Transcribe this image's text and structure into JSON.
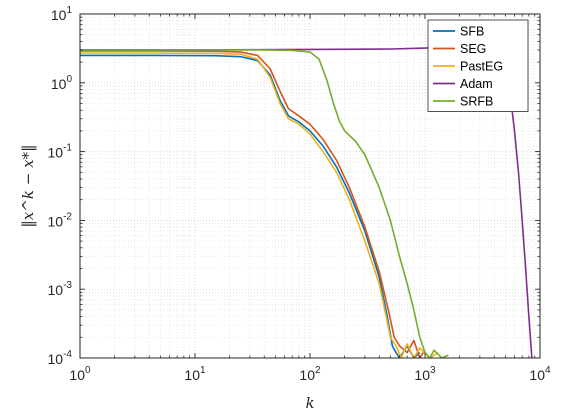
{
  "chart_data": {
    "type": "line",
    "xscale": "log",
    "yscale": "log",
    "xlim": [
      1,
      10000
    ],
    "ylim": [
      0.0001,
      10
    ],
    "xlabel": "k",
    "ylabel": "‖x^k − x*‖",
    "grid": true,
    "minor_grid": true,
    "legend_position": "top-right",
    "x_ticks": [
      {
        "value": 1,
        "base": "10",
        "exp": "0"
      },
      {
        "value": 10,
        "base": "10",
        "exp": "1"
      },
      {
        "value": 100,
        "base": "10",
        "exp": "2"
      },
      {
        "value": 1000,
        "base": "10",
        "exp": "3"
      },
      {
        "value": 10000,
        "base": "10",
        "exp": "4"
      }
    ],
    "y_ticks": [
      {
        "value": 0.0001,
        "base": "10",
        "exp": "-4"
      },
      {
        "value": 0.001,
        "base": "10",
        "exp": "-3"
      },
      {
        "value": 0.01,
        "base": "10",
        "exp": "-2"
      },
      {
        "value": 0.1,
        "base": "10",
        "exp": "-1"
      },
      {
        "value": 1,
        "base": "10",
        "exp": "0"
      },
      {
        "value": 10,
        "base": "10",
        "exp": "1"
      }
    ],
    "series": [
      {
        "name": "SFB",
        "color": "#0072BD",
        "x": [
          1,
          5,
          15,
          25,
          35,
          45,
          55,
          65,
          80,
          100,
          130,
          170,
          220,
          300,
          400,
          470,
          520,
          560,
          600,
          700,
          800,
          900
        ],
        "y": [
          2.5,
          2.5,
          2.48,
          2.4,
          2.1,
          1.3,
          0.55,
          0.33,
          0.27,
          0.2,
          0.12,
          0.06,
          0.025,
          0.007,
          0.0015,
          0.0004,
          0.00015,
          0.00012,
          0.0001,
          0.00015,
          0.0001,
          0.00012
        ]
      },
      {
        "name": "SEG",
        "color": "#D95319",
        "x": [
          1,
          5,
          15,
          25,
          35,
          45,
          55,
          65,
          80,
          100,
          130,
          170,
          220,
          300,
          400,
          480,
          540,
          600,
          700,
          800,
          900,
          1000
        ],
        "y": [
          2.9,
          2.9,
          2.88,
          2.8,
          2.5,
          1.6,
          0.75,
          0.42,
          0.33,
          0.25,
          0.15,
          0.075,
          0.03,
          0.008,
          0.0018,
          0.0005,
          0.0002,
          0.00015,
          0.00012,
          0.00018,
          0.0001,
          0.00013
        ]
      },
      {
        "name": "PastEG",
        "color": "#EDB120",
        "x": [
          1,
          5,
          15,
          25,
          35,
          45,
          55,
          65,
          80,
          100,
          130,
          170,
          220,
          300,
          400,
          460,
          500,
          560,
          620,
          700,
          800,
          900,
          1100,
          1300
        ],
        "y": [
          2.7,
          2.7,
          2.68,
          2.6,
          2.2,
          1.2,
          0.5,
          0.3,
          0.25,
          0.18,
          0.1,
          0.05,
          0.02,
          0.005,
          0.0012,
          0.0004,
          0.0002,
          0.00015,
          0.0001,
          0.00016,
          0.0001,
          0.00014,
          0.0001,
          0.00012
        ]
      },
      {
        "name": "Adam",
        "color": "#7E2F8E",
        "x": [
          1,
          10,
          100,
          500,
          1000,
          2000,
          3000,
          4000,
          4500,
          5000,
          5500,
          6000,
          6500,
          7000,
          7500,
          8000,
          8500
        ],
        "y": [
          3.0,
          3.0,
          3.05,
          3.1,
          3.2,
          3.3,
          3.3,
          3.1,
          2.8,
          1.8,
          0.7,
          0.2,
          0.05,
          0.01,
          0.002,
          0.0004,
          0.0001
        ]
      },
      {
        "name": "SRFB",
        "color": "#77AC30",
        "x": [
          1,
          10,
          40,
          70,
          100,
          120,
          140,
          160,
          180,
          200,
          250,
          300,
          400,
          500,
          600,
          700,
          800,
          900,
          1000,
          1100,
          1200,
          1400,
          1600
        ],
        "y": [
          3.0,
          3.0,
          3.0,
          2.95,
          2.8,
          2.2,
          1.1,
          0.5,
          0.28,
          0.2,
          0.14,
          0.09,
          0.03,
          0.01,
          0.003,
          0.0012,
          0.0005,
          0.0002,
          0.00012,
          0.0001,
          0.00013,
          0.0001,
          0.00011
        ]
      }
    ]
  }
}
